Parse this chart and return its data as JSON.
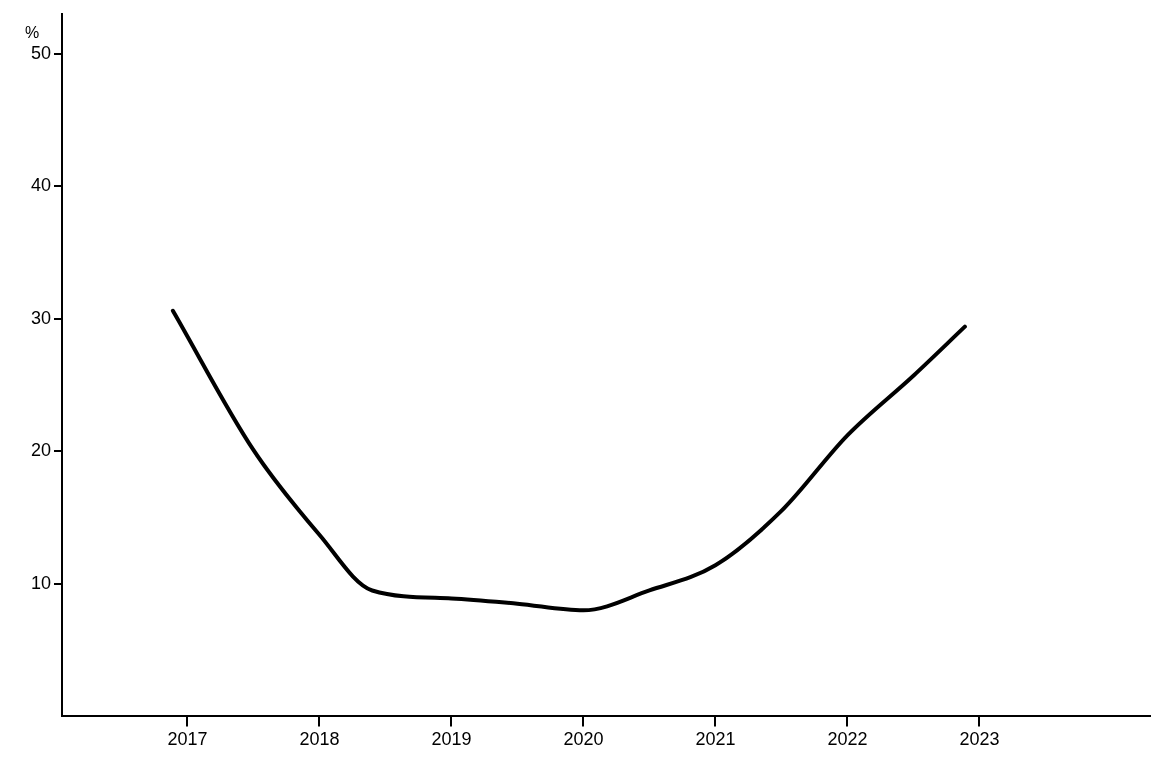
{
  "chart_data": {
    "type": "line",
    "ylabel": "%",
    "x": [
      2016.89,
      2017.5,
      2018,
      2018.4,
      2019,
      2019.5,
      2020,
      2020.5,
      2021,
      2021.5,
      2022,
      2022.5,
      2022.89
    ],
    "series": [
      {
        "color": "#000000",
        "values": [
          30.6,
          20.1,
          13.7,
          9.5,
          8.9,
          8.5,
          8.0,
          9.5,
          11.4,
          15.5,
          21.2,
          25.7,
          29.4
        ]
      }
    ],
    "xlim": [
      2016.05,
      2024.3
    ],
    "xticks": [
      {
        "value": 2017,
        "label": "2017"
      },
      {
        "value": 2018,
        "label": "2018"
      },
      {
        "value": 2019,
        "label": "2019"
      },
      {
        "value": 2020,
        "label": "2020"
      },
      {
        "value": 2021,
        "label": "2021"
      },
      {
        "value": 2022,
        "label": "2022"
      },
      {
        "value": 2023,
        "label": "2023"
      }
    ],
    "ylim": [
      0,
      53
    ],
    "yticks": [
      10,
      20,
      30,
      40,
      50
    ],
    "grid": false,
    "legend": false,
    "marker": "none",
    "line_style": "solid"
  }
}
